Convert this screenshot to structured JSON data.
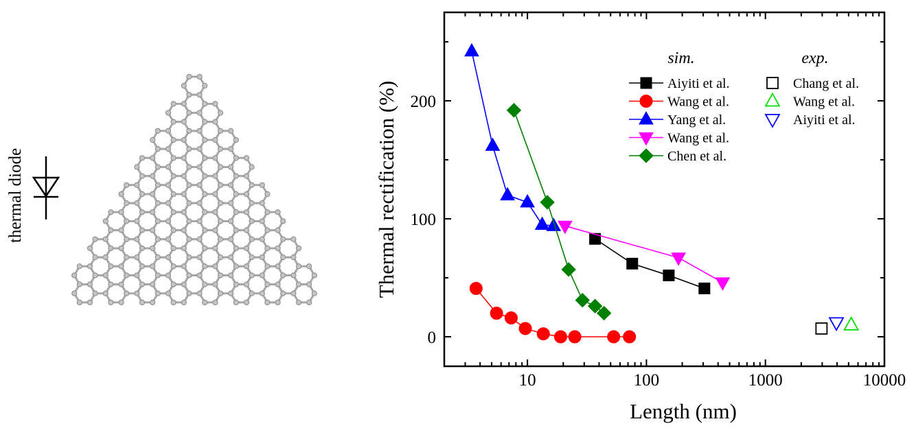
{
  "left_panel": {
    "diode_label": "thermal diode"
  },
  "chart_data": {
    "type": "scatter",
    "xlabel": "Length (nm)",
    "ylabel": "Thermal rectification (%)",
    "xscale": "log",
    "xlim": [
      2,
      10000
    ],
    "ylim": [
      -25,
      275
    ],
    "xticks": [
      10,
      100,
      1000,
      10000
    ],
    "xtick_labels": [
      "10",
      "100",
      "1000",
      "10000"
    ],
    "yticks": [
      0,
      100,
      200
    ],
    "ytick_labels": [
      "0",
      "100",
      "200"
    ],
    "grid": false,
    "legend": {
      "placement": "top-right",
      "sim_title": "sim.",
      "exp_title": "exp."
    },
    "series": [
      {
        "group": "sim",
        "name": "Aiyiti et al.",
        "color": "#000000",
        "marker": "square",
        "filled": true,
        "line": true,
        "x": [
          37,
          76,
          154,
          307
        ],
        "y": [
          83,
          62,
          52,
          41
        ]
      },
      {
        "group": "sim",
        "name": "Wang et al.",
        "color": "#ff0000",
        "marker": "circle",
        "filled": true,
        "line": true,
        "x": [
          3.7,
          5.5,
          7.3,
          9.6,
          13.6,
          19,
          25,
          53,
          72
        ],
        "y": [
          41,
          20,
          16,
          7,
          2.5,
          0,
          0,
          0,
          0
        ]
      },
      {
        "group": "sim",
        "name": "Yang et al.",
        "color": "#0000ff",
        "marker": "triangle-up",
        "filled": true,
        "line": true,
        "x": [
          3.4,
          5.1,
          6.8,
          10,
          13.3,
          16.6
        ],
        "y": [
          242,
          162,
          120,
          114,
          95,
          94
        ]
      },
      {
        "group": "sim",
        "name": "Wang et al.",
        "color": "#ff00ff",
        "marker": "triangle-down",
        "filled": true,
        "line": true,
        "x": [
          20.7,
          186,
          437
        ],
        "y": [
          94,
          67,
          46
        ]
      },
      {
        "group": "sim",
        "name": "Chen et al.",
        "color": "#008000",
        "marker": "diamond",
        "filled": true,
        "line": true,
        "x": [
          7.7,
          14.7,
          22.2,
          29,
          37,
          44
        ],
        "y": [
          192,
          114,
          57,
          31,
          26,
          20
        ]
      },
      {
        "group": "exp",
        "name": "Chang et al.",
        "color": "#000000",
        "marker": "square",
        "filled": false,
        "line": false,
        "x": [
          2960
        ],
        "y": [
          7
        ]
      },
      {
        "group": "exp",
        "name": "Wang et al.",
        "color": "#00dd00",
        "marker": "triangle-up",
        "filled": false,
        "line": false,
        "x": [
          5260
        ],
        "y": [
          10
        ]
      },
      {
        "group": "exp",
        "name": "Aiyiti et al.",
        "color": "#0000ff",
        "marker": "triangle-down",
        "filled": false,
        "line": false,
        "x": [
          3950
        ],
        "y": [
          12
        ]
      }
    ]
  }
}
